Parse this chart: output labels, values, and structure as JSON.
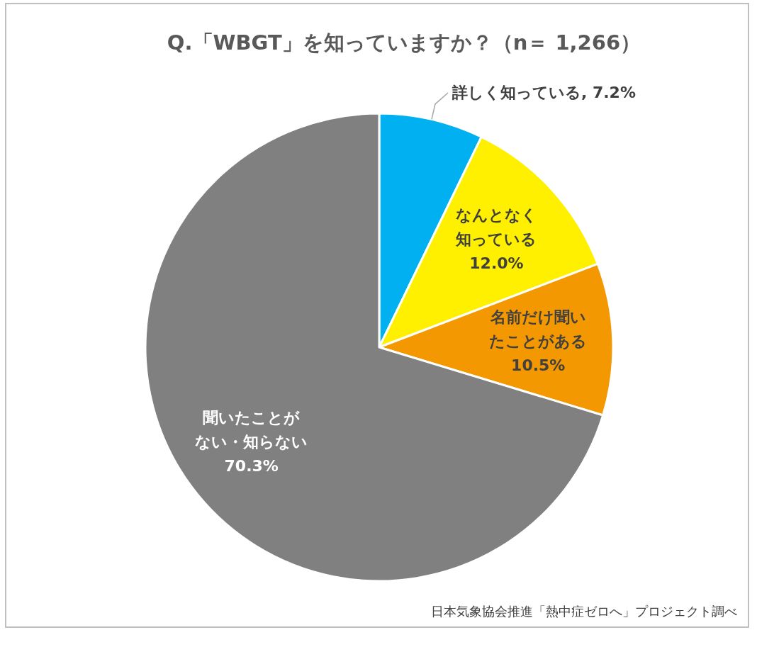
{
  "chart_data": {
    "type": "pie",
    "title": "Q.「WBGT」を知っていますか？（n＝ 1,266）",
    "categories": [
      "詳しく知っている",
      "なんとなく知っている",
      "名前だけ聞いたことがある",
      "聞いたことがない・知らない"
    ],
    "values": [
      7.2,
      12.0,
      10.5,
      70.3
    ],
    "value_labels": [
      "7.2%",
      "12.0%",
      "10.5%",
      "70.3%"
    ],
    "colors": [
      "#00b0f0",
      "#fff000",
      "#f39800",
      "#808080"
    ],
    "annotations": [
      "日本気象協会推進「熱中症ゼロへ」プロジェクト調べ"
    ]
  }
}
